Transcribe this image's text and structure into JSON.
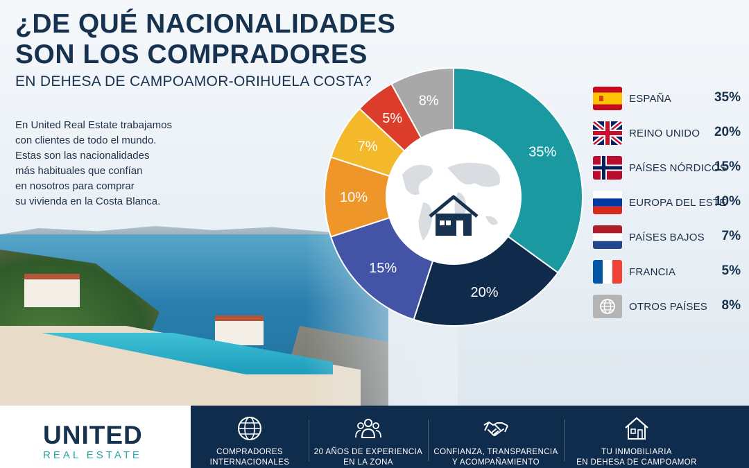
{
  "title": {
    "line1": "¿DE QUÉ NACIONALIDADES",
    "line2": "SON LOS COMPRADORES",
    "subtitle": "EN DEHESA DE CAMPOAMOR-ORIHUELA COSTA?"
  },
  "intro": {
    "lines": [
      "En United Real Estate trabajamos",
      "con clientes de todo el mundo.",
      "Estas son las nacionalidades",
      "más habituales que confían",
      "en nosotros para comprar",
      "su vivienda en la Costa Blanca."
    ]
  },
  "chart_data": {
    "type": "pie",
    "donut": true,
    "center_icon": "house-icon",
    "center_background": "world-map",
    "slices": [
      {
        "label": "ESPAÑA",
        "value": 35,
        "display": "35%",
        "color": "#1a9aa0",
        "flag": "spain-flag-icon"
      },
      {
        "label": "REINO UNIDO",
        "value": 20,
        "display": "20%",
        "color": "#0f2a4a",
        "flag": "uk-flag-icon"
      },
      {
        "label": "PAÍSES NÓRDICOS",
        "value": 15,
        "display": "15%",
        "color": "#4353a6",
        "flag": "norway-flag-icon"
      },
      {
        "label": "EUROPA DEL ESTE",
        "value": 10,
        "display": "10%",
        "color": "#ef962b",
        "flag": "russia-flag-icon"
      },
      {
        "label": "PAÍSES BAJOS",
        "value": 7,
        "display": "7%",
        "color": "#f4b92b",
        "flag": "netherlands-flag-icon"
      },
      {
        "label": "FRANCIA",
        "value": 5,
        "display": "5%",
        "color": "#dc3c2a",
        "flag": "france-flag-icon"
      },
      {
        "label": "OTROS PAÍSES",
        "value": 8,
        "display": "8%",
        "color": "#a8a8a8",
        "flag": "globe-icon"
      }
    ]
  },
  "brand": {
    "name": "UNITED",
    "tagline": "REAL ESTATE"
  },
  "features": [
    {
      "icon": "globe-icon",
      "line1": "COMPRADORES",
      "line2": "INTERNACIONALES"
    },
    {
      "icon": "people-icon",
      "line1": "20 AÑOS DE EXPERIENCIA",
      "line2": "EN LA ZONA"
    },
    {
      "icon": "handshake-icon",
      "line1": "CONFIANZA, TRANSPARENCIA",
      "line2": "Y ACOMPAÑAMIENTO"
    },
    {
      "icon": "home-icon",
      "line1": "TU INMOBILIARIA",
      "line2": "EN DEHESA DE CAMPOAMOR"
    }
  ]
}
